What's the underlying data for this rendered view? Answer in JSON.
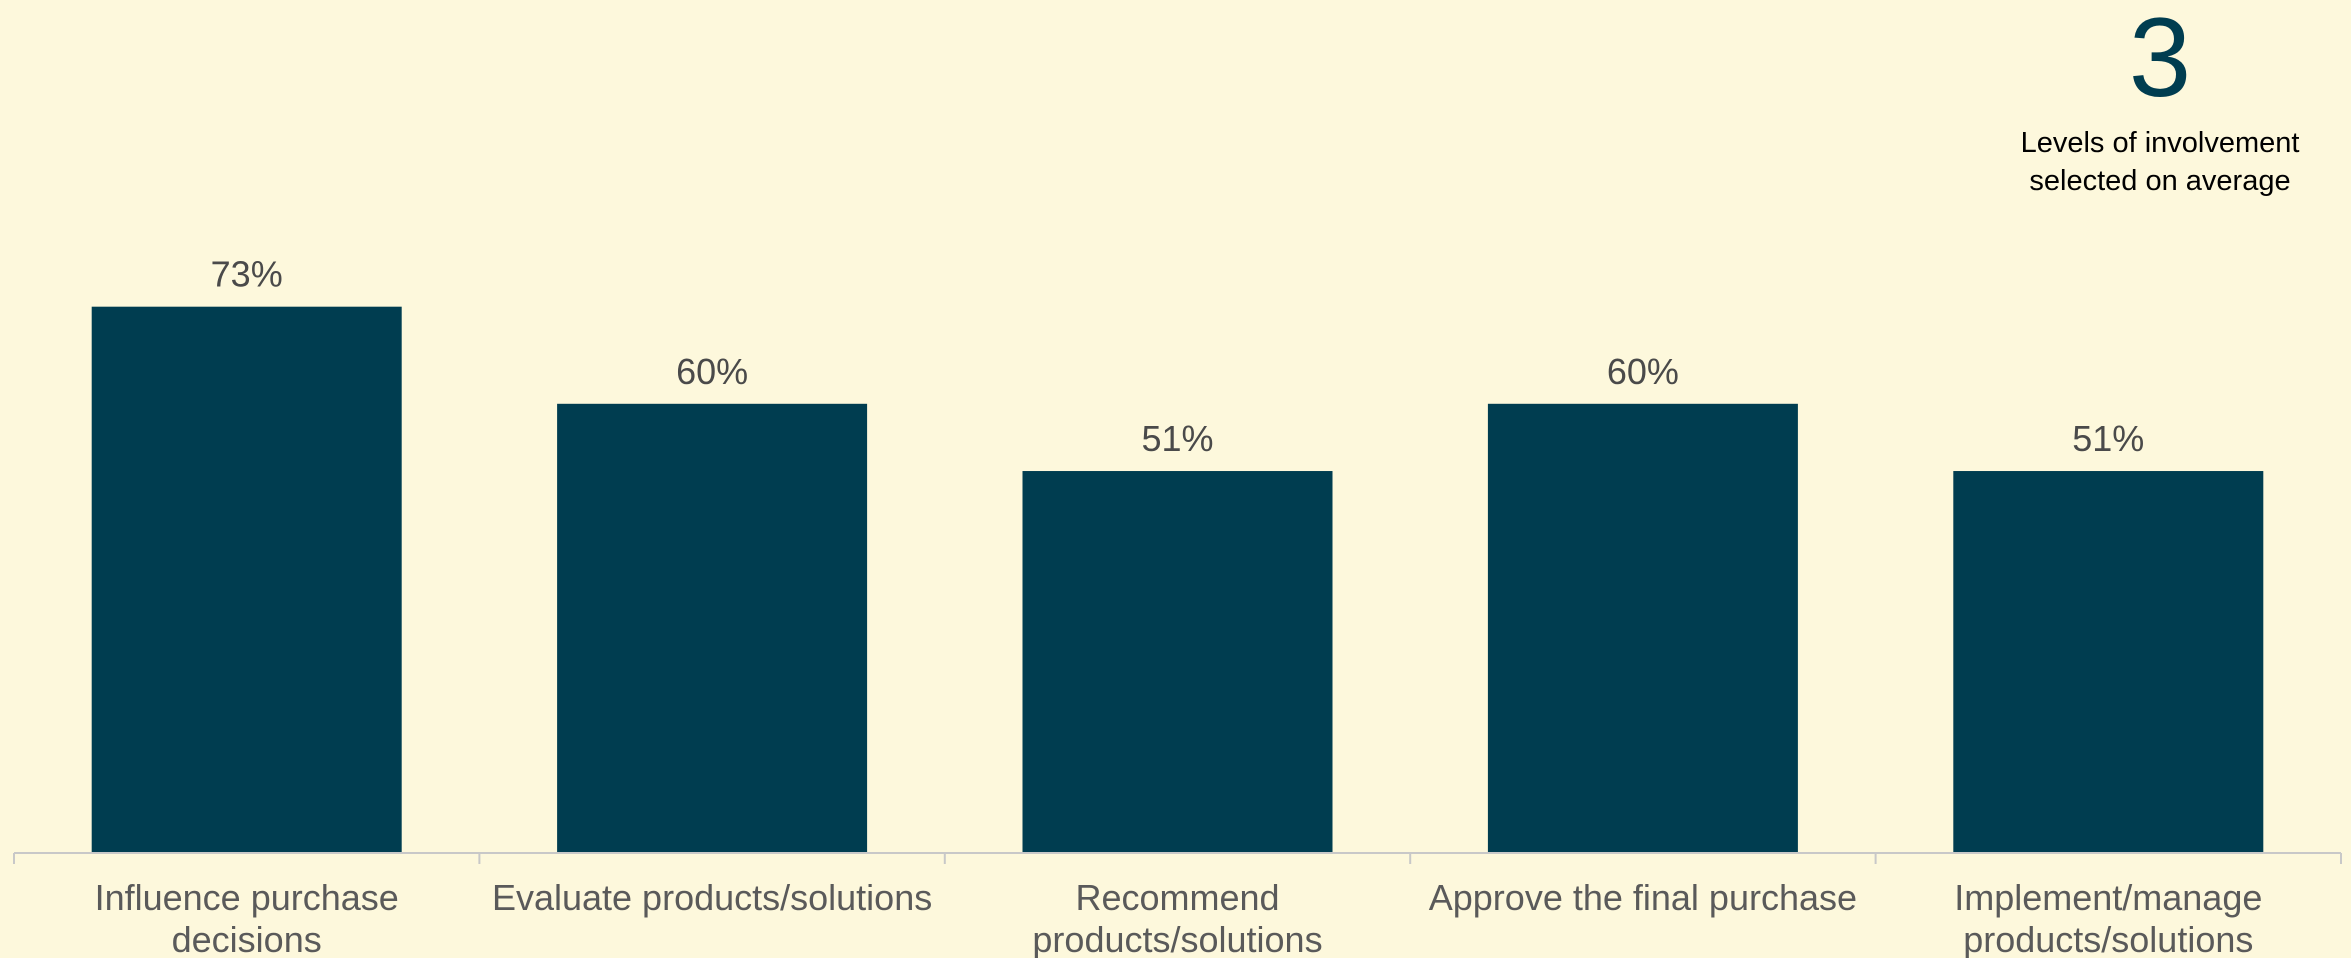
{
  "chart_data": {
    "type": "bar",
    "categories": [
      [
        "Influence purchase",
        "decisions"
      ],
      [
        "Evaluate products/solutions"
      ],
      [
        "Recommend",
        "products/solutions"
      ],
      [
        "Approve the final purchase"
      ],
      [
        "Implement/manage",
        "products/solutions"
      ]
    ],
    "values": [
      73,
      60,
      51,
      60,
      51
    ],
    "value_labels": [
      "73%",
      "60%",
      "51%",
      "60%",
      "51%"
    ],
    "ylim": [
      0,
      100
    ],
    "grid": false,
    "bar_color": "#003d50"
  },
  "callout": {
    "number": "3",
    "text": "Levels of involvement selected on average",
    "number_color": "#003d50"
  },
  "colors": {
    "background": "#fdf8dc",
    "bar": "#003d50",
    "axis": "#c8c8c8"
  }
}
